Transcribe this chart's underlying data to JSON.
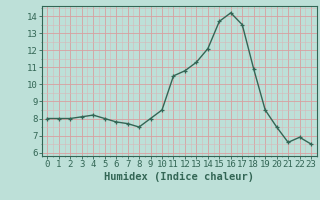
{
  "x": [
    0,
    1,
    2,
    3,
    4,
    5,
    6,
    7,
    8,
    9,
    10,
    11,
    12,
    13,
    14,
    15,
    16,
    17,
    18,
    19,
    20,
    21,
    22,
    23
  ],
  "y": [
    8.0,
    8.0,
    8.0,
    8.1,
    8.2,
    8.0,
    7.8,
    7.7,
    7.5,
    8.0,
    8.5,
    10.5,
    10.8,
    11.3,
    12.1,
    13.7,
    14.2,
    13.5,
    10.9,
    8.5,
    7.5,
    6.6,
    6.9,
    6.5
  ],
  "line_color": "#336655",
  "marker": "+",
  "bg_color": "#bde0d8",
  "grid_major_color": "#d8a0a0",
  "grid_minor_color": "#d8b8b8",
  "xlabel": "Humidex (Indice chaleur)",
  "xlim": [
    -0.5,
    23.5
  ],
  "ylim": [
    5.8,
    14.6
  ],
  "yticks": [
    6,
    7,
    8,
    9,
    10,
    11,
    12,
    13,
    14
  ],
  "xticks": [
    0,
    1,
    2,
    3,
    4,
    5,
    6,
    7,
    8,
    9,
    10,
    11,
    12,
    13,
    14,
    15,
    16,
    17,
    18,
    19,
    20,
    21,
    22,
    23
  ],
  "xlabel_fontsize": 7.5,
  "tick_fontsize": 6.5,
  "linewidth": 1.0,
  "markersize": 3.5
}
